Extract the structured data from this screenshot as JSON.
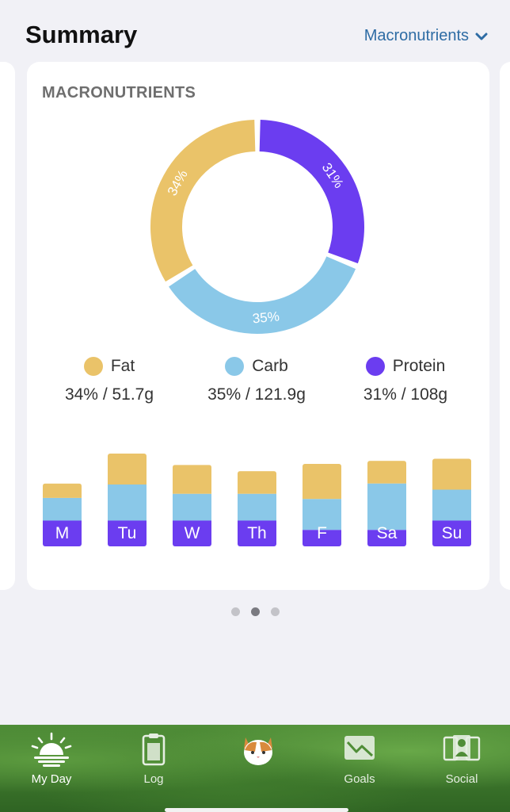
{
  "header": {
    "title": "Summary",
    "selector_label": "Macronutrients"
  },
  "card": {
    "title": "MACRONUTRIENTS"
  },
  "colors": {
    "fat": "#eac369",
    "carb": "#8ac8e8",
    "protein": "#6b3df0"
  },
  "chart_data": {
    "type": "pie",
    "style": "donut",
    "slices": [
      {
        "name": "Protein",
        "percent": 31,
        "label": "31%",
        "color": "#6b3df0"
      },
      {
        "name": "Carb",
        "percent": 35,
        "label": "35%",
        "color": "#8ac8e8"
      },
      {
        "name": "Fat",
        "percent": 34,
        "label": "34%",
        "color": "#eac369"
      }
    ]
  },
  "legend": [
    {
      "key": "fat",
      "name": "Fat",
      "value": "34% / 51.7g"
    },
    {
      "key": "carb",
      "name": "Carb",
      "value": "35% / 121.9g"
    },
    {
      "key": "protein",
      "name": "Protein",
      "value": "31% / 108g"
    }
  ],
  "weekly_chart": {
    "type": "stacked-bar",
    "ylim": [
      0,
      100
    ],
    "days": [
      {
        "label": "M",
        "protein": 25,
        "carb": 22,
        "fat": 14
      },
      {
        "label": "Tu",
        "protein": 25,
        "carb": 35,
        "fat": 30
      },
      {
        "label": "W",
        "protein": 25,
        "carb": 26,
        "fat": 28
      },
      {
        "label": "Th",
        "protein": 25,
        "carb": 26,
        "fat": 22
      },
      {
        "label": "F",
        "protein": 16,
        "carb": 30,
        "fat": 34
      },
      {
        "label": "Sa",
        "protein": 16,
        "carb": 45,
        "fat": 22
      },
      {
        "label": "Su",
        "protein": 25,
        "carb": 30,
        "fat": 30
      }
    ]
  },
  "pager": {
    "count": 3,
    "active": 1
  },
  "tabbar": {
    "tabs": [
      {
        "name": "my-day",
        "label": "My Day",
        "icon": "sunrise-icon",
        "active": true
      },
      {
        "name": "log",
        "label": "Log",
        "icon": "clipboard-icon",
        "active": false
      },
      {
        "name": "coach",
        "label": "",
        "icon": "cat-avatar-icon",
        "active": false
      },
      {
        "name": "goals",
        "label": "Goals",
        "icon": "chart-trend-icon",
        "active": false
      },
      {
        "name": "social",
        "label": "Social",
        "icon": "people-icon",
        "active": false
      }
    ]
  }
}
